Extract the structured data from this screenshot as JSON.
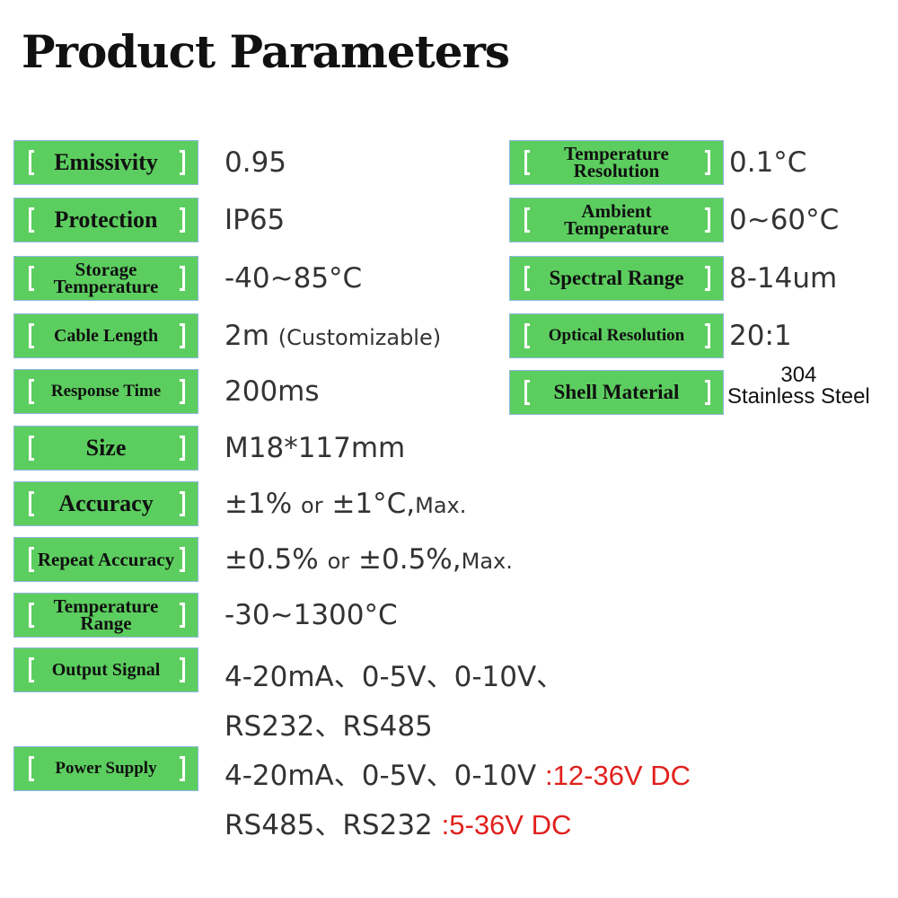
{
  "title": "Product Parameters",
  "left": [
    {
      "label": "Emissivity",
      "value": "0.95"
    },
    {
      "label": "Protection",
      "value": "IP65"
    },
    {
      "label": "Storage Temperature",
      "value": "-40~85°C"
    },
    {
      "label": "Cable Length",
      "value": "2m",
      "value_note": "(Customizable)"
    },
    {
      "label": "Response Time",
      "value": "200ms"
    },
    {
      "label": "Size",
      "value": "M18*117mm"
    },
    {
      "label": "Accuracy",
      "value": "±1%",
      "or": "or",
      "value2": "±1°C,",
      "max": "Max."
    },
    {
      "label": "Repeat Accuracy",
      "value": "±0.5%",
      "or": "or",
      "value2": "±0.5%,",
      "max": "Max."
    },
    {
      "label": "Temperature Range",
      "value": "-30~1300°C"
    },
    {
      "label": "Output Signal",
      "value": "4-20mA、0-5V、0-10V、",
      "value_line2": "RS232、RS485"
    },
    {
      "label": "Power Supply",
      "value": "4-20mA、0-5V、0-10V",
      "value_red": ":12-36V DC",
      "value_line2": "RS485、RS232",
      "value_line2_red": ":5-36V DC"
    }
  ],
  "right": [
    {
      "label": "Temperature Resolution",
      "value": "0.1°C"
    },
    {
      "label": "Ambient Temperature",
      "value": "0~60°C"
    },
    {
      "label": "Spectral Range",
      "value": "8-14um"
    },
    {
      "label": "Optical Resolution",
      "value": "20:1"
    },
    {
      "label": "Shell Material",
      "value_line1": "304",
      "value_line2": "Stainless Steel"
    }
  ],
  "colors": {
    "label_bg": "#5cce5f",
    "highlight": "#e0201c"
  }
}
